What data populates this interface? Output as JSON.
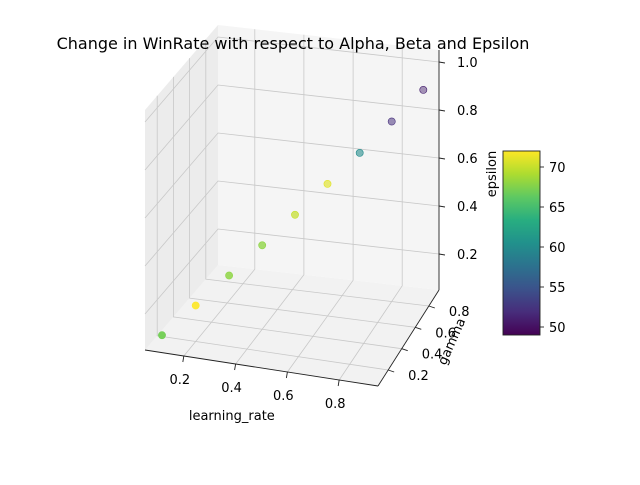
{
  "chart_data": {
    "type": "scatter",
    "title": "Change in WinRate with respect to Alpha, Beta and Epsilon",
    "xlabel": "learning_rate",
    "ylabel": "gamma",
    "zlabel": "epsilon",
    "xlim": [
      0.05,
      0.95
    ],
    "ylim": [
      0.05,
      0.95
    ],
    "zlim": [
      0.05,
      1.05
    ],
    "x_ticks": [
      "0.2",
      "0.4",
      "0.6",
      "0.8"
    ],
    "y_ticks": [
      "0.2",
      "0.4",
      "0.6",
      "0.8"
    ],
    "z_ticks": [
      "0.2",
      "0.4",
      "0.6",
      "0.8",
      "1.0"
    ],
    "grid": true,
    "colormap": "viridis",
    "colorbar": {
      "min": 49,
      "max": 72,
      "ticks": [
        "50",
        "55",
        "60",
        "65",
        "70"
      ]
    },
    "points": [
      {
        "x": 0.1,
        "y": 0.1,
        "z": 0.1,
        "winrate": 67
      },
      {
        "x": 0.2,
        "y": 0.2,
        "z": 0.2,
        "winrate": 72
      },
      {
        "x": 0.3,
        "y": 0.3,
        "z": 0.3,
        "winrate": 68
      },
      {
        "x": 0.4,
        "y": 0.4,
        "z": 0.4,
        "winrate": 68
      },
      {
        "x": 0.5,
        "y": 0.5,
        "z": 0.5,
        "winrate": 70
      },
      {
        "x": 0.6,
        "y": 0.6,
        "z": 0.6,
        "winrate": 71
      },
      {
        "x": 0.7,
        "y": 0.7,
        "z": 0.7,
        "winrate": 60
      },
      {
        "x": 0.8,
        "y": 0.8,
        "z": 0.8,
        "winrate": 52
      },
      {
        "x": 0.9,
        "y": 0.9,
        "z": 0.9,
        "winrate": 51
      }
    ]
  }
}
